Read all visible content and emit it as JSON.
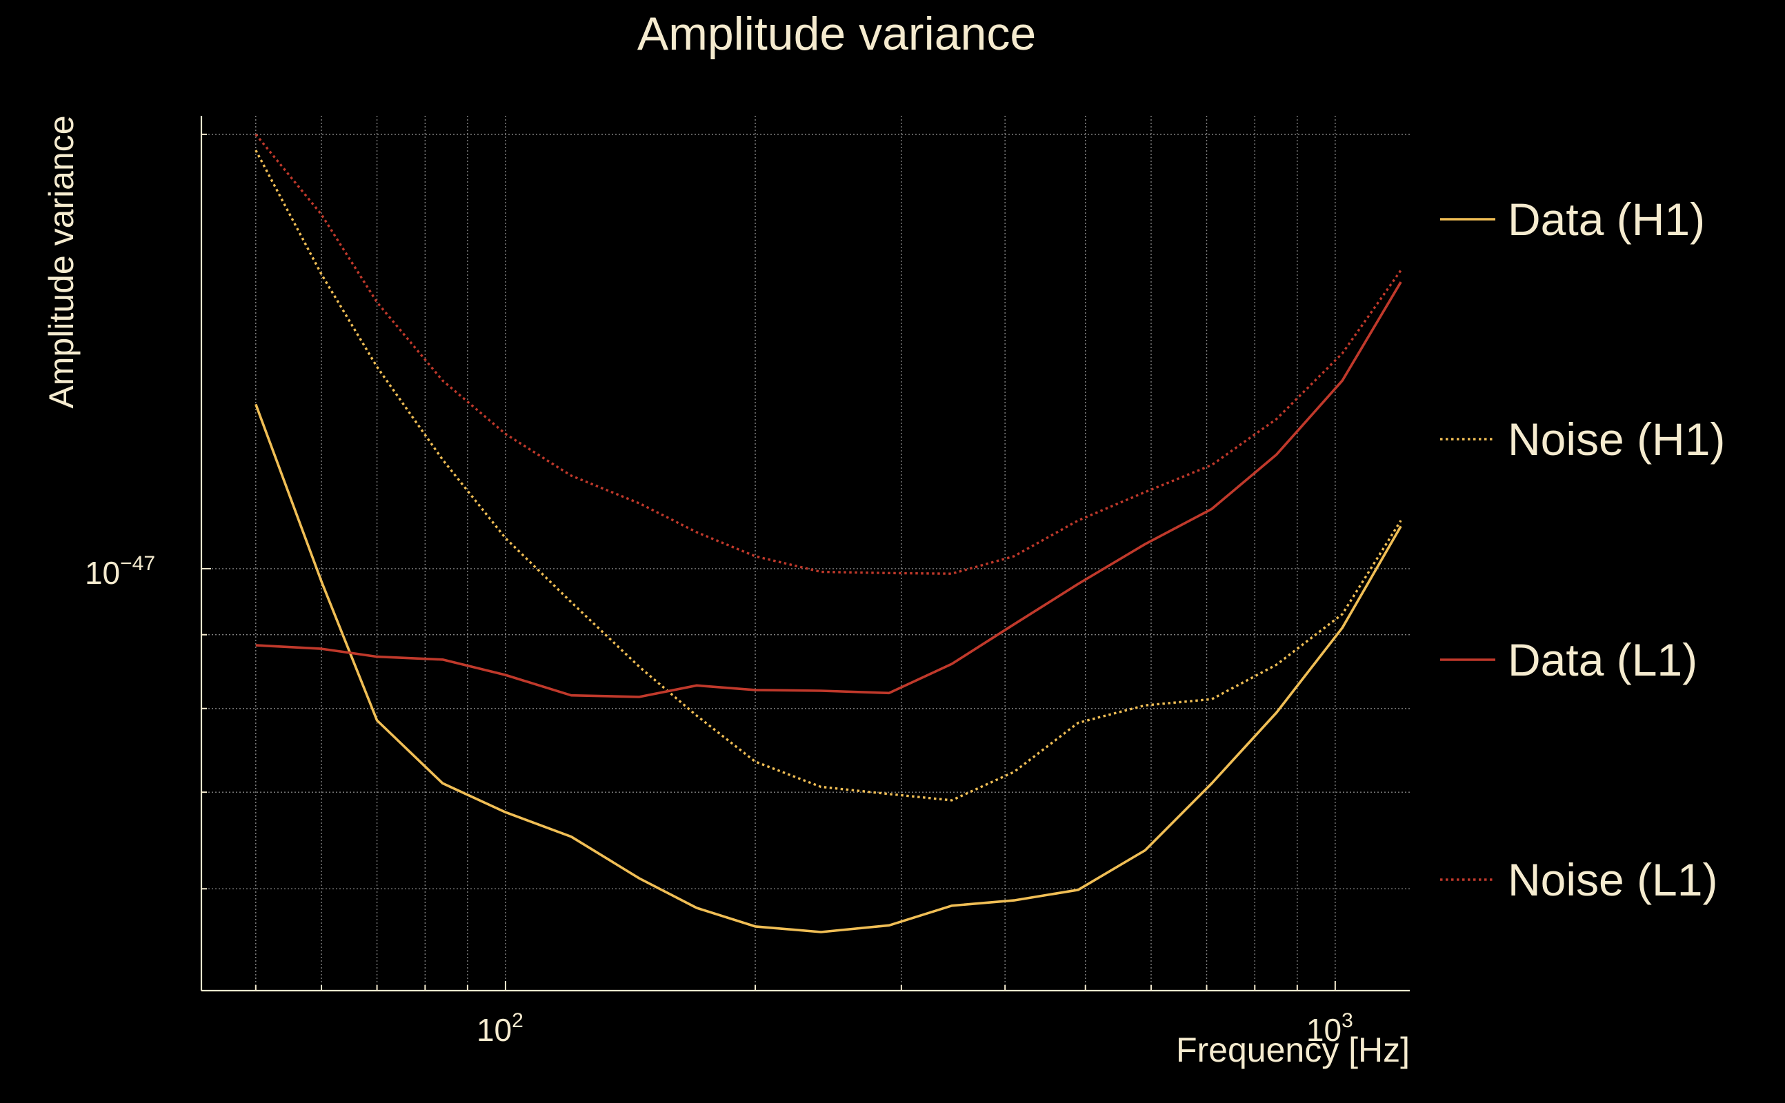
{
  "chart_data": {
    "type": "line",
    "title": "Amplitude variance",
    "xlabel": "Frequency [Hz]",
    "ylabel": "Amplitude variance",
    "xscale": "log",
    "yscale": "log",
    "xlim": [
      43,
      1230
    ],
    "ylim": [
      5.1e-48,
      2.06e-47
    ],
    "x_tick_labels": [
      {
        "base": "10",
        "exp": "2",
        "value": 100
      },
      {
        "base": "10",
        "exp": "3",
        "value": 1000
      }
    ],
    "y_tick_labels": [
      {
        "base": "10",
        "exp": "−47",
        "value": 1e-47
      }
    ],
    "grid": true,
    "legend_position": "right",
    "x": [
      50,
      60,
      70,
      84,
      100,
      120,
      145,
      170,
      200,
      240,
      290,
      345,
      410,
      490,
      590,
      710,
      850,
      1020,
      1200
    ],
    "series": [
      {
        "name": "Data (H1)",
        "color": "#f0be55",
        "style": "solid",
        "values": [
          1.3e-47,
          9.8e-48,
          7.85e-48,
          7.1e-48,
          6.78e-48,
          6.52e-48,
          6.1e-48,
          5.82e-48,
          5.65e-48,
          5.6e-48,
          5.66e-48,
          5.84e-48,
          5.89e-48,
          5.99e-48,
          6.38e-48,
          7.1e-48,
          7.95e-48,
          9.1e-48,
          1.07e-47
        ]
      },
      {
        "name": "Noise (H1)",
        "color": "#f0be55",
        "style": "dotted",
        "values": [
          1.95e-47,
          1.6e-47,
          1.38e-47,
          1.19e-47,
          1.05e-47,
          9.48e-48,
          8.55e-48,
          7.91e-48,
          7.35e-48,
          7.06e-48,
          6.98e-48,
          6.91e-48,
          7.23e-48,
          7.82e-48,
          8.04e-48,
          8.12e-48,
          8.58e-48,
          9.3e-48,
          1.08e-47
        ]
      },
      {
        "name": "Data (L1)",
        "color": "#c0392b",
        "style": "solid",
        "values": [
          8.85e-48,
          8.8e-48,
          8.69e-48,
          8.65e-48,
          8.44e-48,
          8.17e-48,
          8.15e-48,
          8.3e-48,
          8.24e-48,
          8.23e-48,
          8.2e-48,
          8.59e-48,
          9.15e-48,
          9.76e-48,
          1.04e-47,
          1.1e-47,
          1.2e-47,
          1.35e-47,
          1.58e-47
        ]
      },
      {
        "name": "Noise (L1)",
        "color": "#c0392b",
        "style": "dotted",
        "values": [
          2e-47,
          1.76e-47,
          1.53e-47,
          1.35e-47,
          1.24e-47,
          1.16e-47,
          1.11e-47,
          1.06e-47,
          1.02e-47,
          9.95e-48,
          9.93e-48,
          9.92e-48,
          1.02e-47,
          1.08e-47,
          1.13e-47,
          1.18e-47,
          1.27e-47,
          1.41e-47,
          1.61e-47
        ]
      }
    ]
  }
}
